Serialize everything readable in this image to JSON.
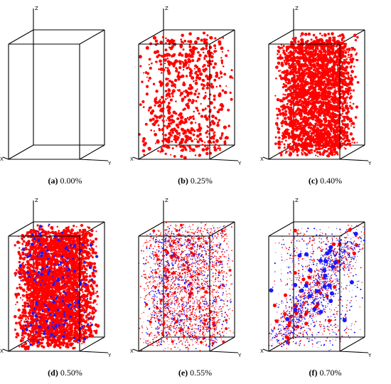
{
  "figure": {
    "axis_labels": {
      "x": "X",
      "y": "Y",
      "z": "Z"
    },
    "colors": {
      "primary": "#ff0000",
      "secondary": "#1a1aff",
      "frame": "#000000"
    },
    "panels": [
      {
        "letter": "(a)",
        "label": "0.00%",
        "red_density": 0,
        "blue_density": 0,
        "pattern": "empty"
      },
      {
        "letter": "(b)",
        "label": "0.25%",
        "red_density": 700,
        "blue_density": 0,
        "pattern": "sparse-large"
      },
      {
        "letter": "(c)",
        "label": "0.40%",
        "red_density": 2600,
        "blue_density": 0,
        "pattern": "dense-column"
      },
      {
        "letter": "(d)",
        "label": "0.50%",
        "red_density": 3200,
        "blue_density": 200,
        "pattern": "dense-column"
      },
      {
        "letter": "(e)",
        "label": "0.55%",
        "red_density": 2200,
        "blue_density": 700,
        "pattern": "fine-bands"
      },
      {
        "letter": "(f)",
        "label": "0.70%",
        "red_density": 900,
        "blue_density": 900,
        "pattern": "diagonal-band"
      }
    ]
  }
}
